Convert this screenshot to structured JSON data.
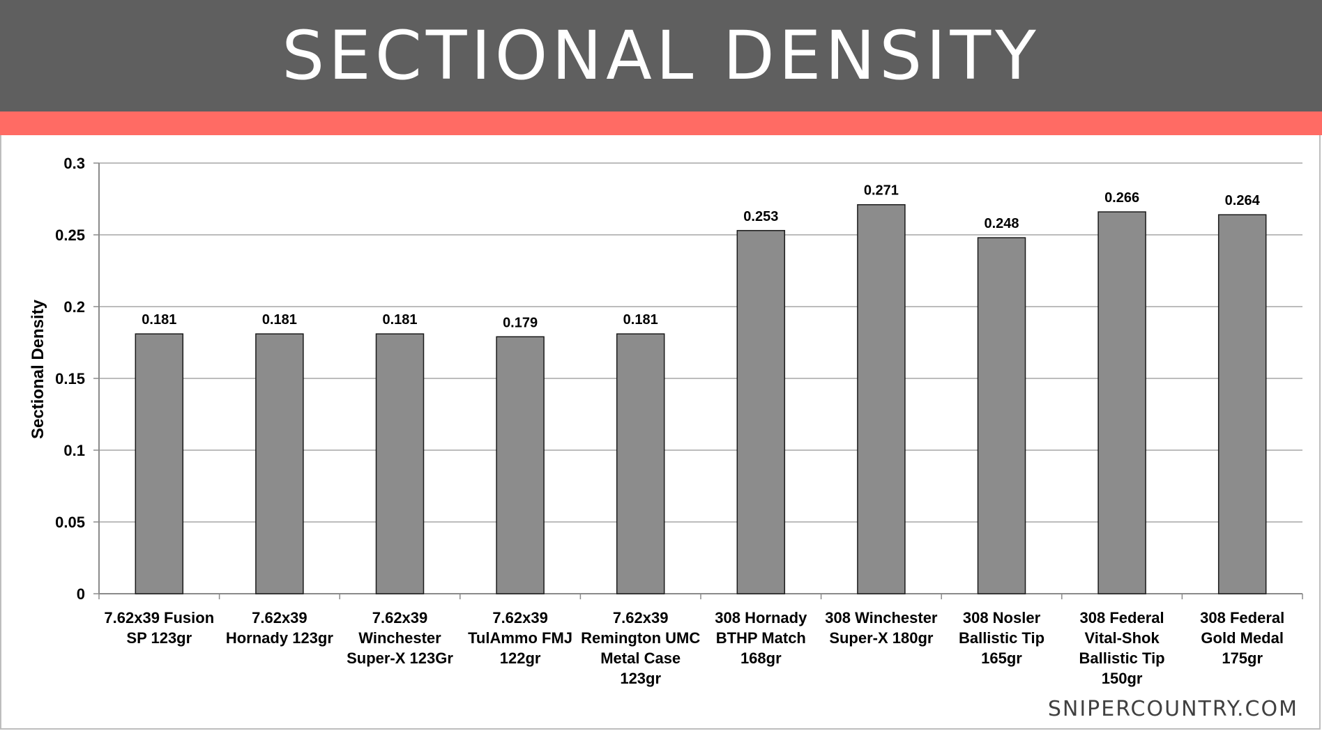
{
  "header": {
    "title": "SECTIONAL DENSITY"
  },
  "footer": {
    "site": "SNIPERCOUNTRY.COM"
  },
  "colors": {
    "header_bg": "#5f5f5f",
    "accent": "#ff6b64",
    "bar_fill": "#8c8c8c",
    "bar_stroke": "#1a1a1a",
    "grid": "#a6a6a6"
  },
  "chart_data": {
    "type": "bar",
    "title": "",
    "xlabel": "",
    "ylabel": "Sectional Density",
    "ylim": [
      0,
      0.3
    ],
    "yticks": [
      "0",
      "0.05",
      "0.1",
      "0.15",
      "0.2",
      "0.25",
      "0.3"
    ],
    "grid": true,
    "legend": "none",
    "categories": [
      [
        "7.62x39 Fusion",
        "SP 123gr"
      ],
      [
        "7.62x39",
        "Hornady 123gr"
      ],
      [
        "7.62x39",
        "Winchester",
        "Super-X 123Gr"
      ],
      [
        "7.62x39",
        "TulAmmo FMJ",
        "122gr"
      ],
      [
        "7.62x39",
        "Remington UMC",
        "Metal Case",
        "123gr"
      ],
      [
        "308 Hornady",
        "BTHP Match",
        "168gr"
      ],
      [
        "308 Winchester",
        "Super-X 180gr"
      ],
      [
        "308 Nosler",
        "Ballistic Tip",
        "165gr"
      ],
      [
        "308 Federal",
        "Vital-Shok",
        "Ballistic Tip",
        "150gr"
      ],
      [
        "308 Federal",
        "Gold Medal",
        "175gr"
      ]
    ],
    "values": [
      0.181,
      0.181,
      0.181,
      0.179,
      0.181,
      0.253,
      0.271,
      0.248,
      0.266,
      0.264
    ],
    "data_labels": [
      "0.181",
      "0.181",
      "0.181",
      "0.179",
      "0.181",
      "0.253",
      "0.271",
      "0.248",
      "0.266",
      "0.264"
    ]
  }
}
